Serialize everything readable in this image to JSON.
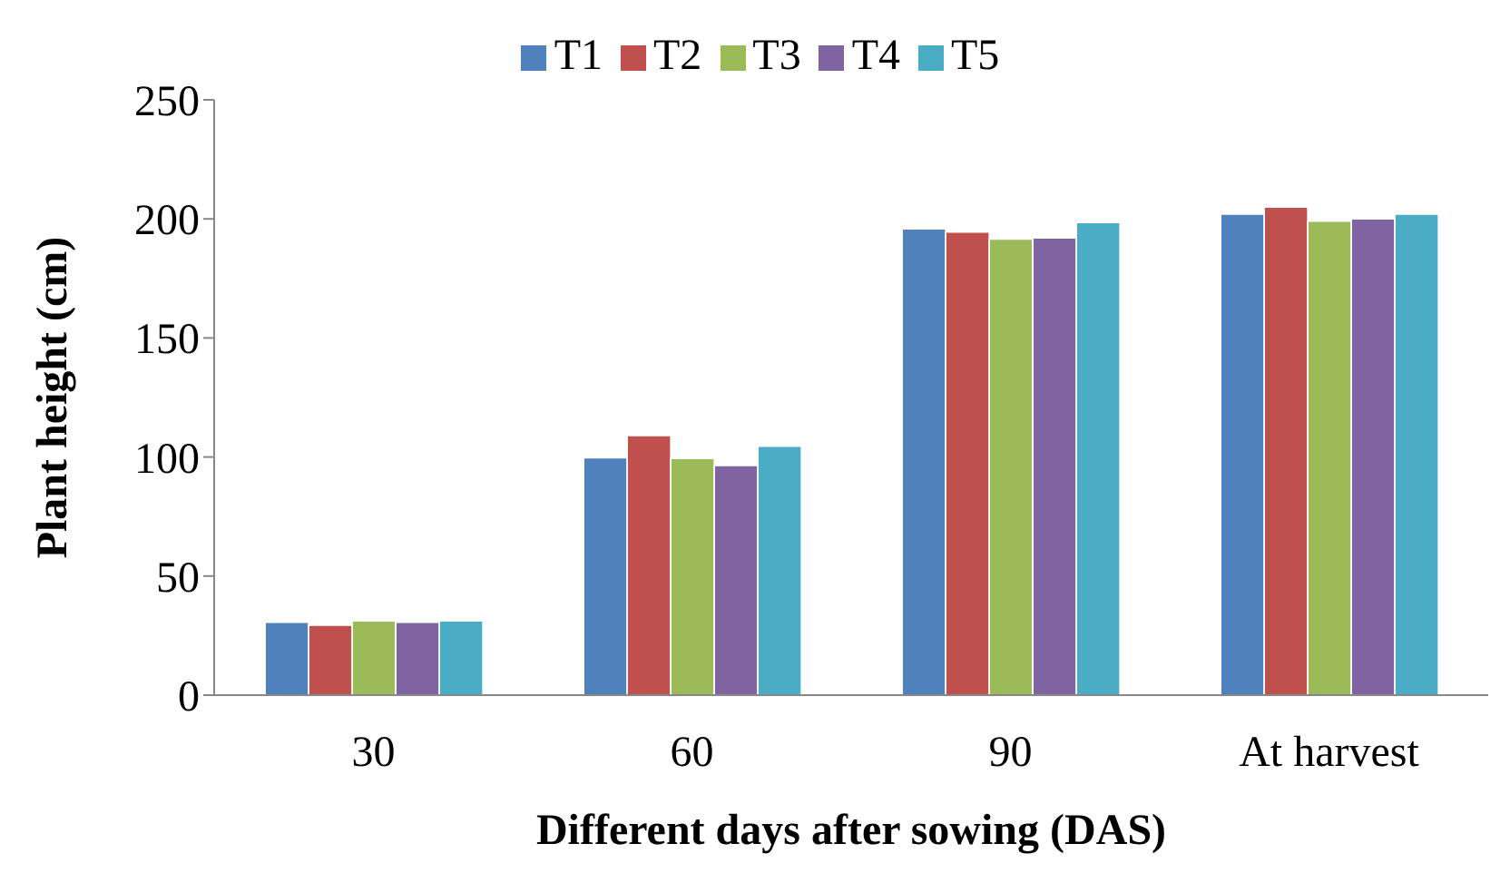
{
  "chart_data": {
    "type": "bar",
    "xlabel": "Different days after sowing (DAS)",
    "ylabel": "Plant height (cm)",
    "categories": [
      "30",
      "60",
      "90",
      "At harvest"
    ],
    "series": [
      {
        "name": "T1",
        "color": "#4f81bd",
        "values": [
          30.6,
          99.7,
          195.8,
          202
        ]
      },
      {
        "name": "T2",
        "color": "#c0504d",
        "values": [
          29.4,
          109,
          194.5,
          205
        ]
      },
      {
        "name": "T3",
        "color": "#9bbb59",
        "values": [
          31.2,
          99.4,
          191.5,
          199
        ]
      },
      {
        "name": "T4",
        "color": "#8064a2",
        "values": [
          30.6,
          96.4,
          192,
          200
        ]
      },
      {
        "name": "T5",
        "color": "#4bacc6",
        "values": [
          31.2,
          104.5,
          198.5,
          202
        ]
      }
    ],
    "ylim": [
      0,
      250
    ],
    "yticks": [
      0,
      50,
      100,
      150,
      200,
      250
    ],
    "grid": false,
    "legend": "top"
  }
}
